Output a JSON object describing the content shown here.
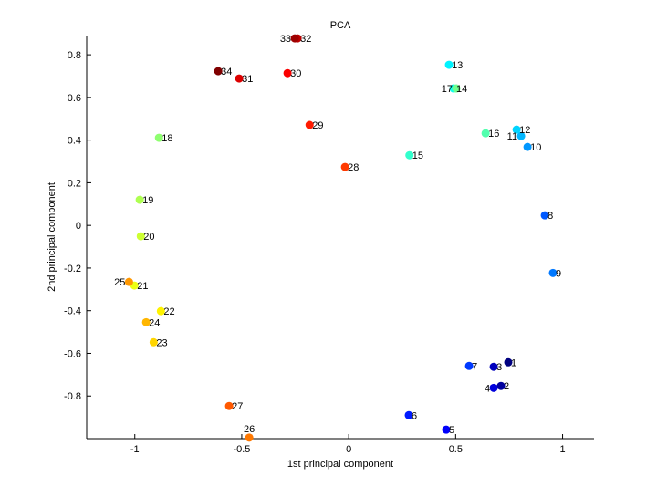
{
  "chart_data": {
    "type": "scatter",
    "title": "PCA",
    "xlabel": "1st principal component",
    "ylabel": "2nd principal component",
    "xlim": [
      -1.225,
      1.147
    ],
    "ylim": [
      -1.0,
      0.886
    ],
    "grid": false,
    "colormap": "jet",
    "xticks": [
      -1,
      -0.5,
      0,
      0.5,
      1
    ],
    "xtick_labels": [
      "-1",
      "-0.5",
      "0",
      "0.5",
      "1"
    ],
    "yticks": [
      -0.8,
      -0.6,
      -0.4,
      -0.2,
      0,
      0.2,
      0.4,
      0.6,
      0.8
    ],
    "ytick_labels": [
      "-0.8",
      "-0.6",
      "-0.4",
      "-0.2",
      "0",
      "0.2",
      "0.4",
      "0.6",
      "0.8"
    ],
    "points": [
      {
        "label": "1",
        "x": 0.746,
        "y": -0.642
      },
      {
        "label": "2",
        "x": 0.712,
        "y": -0.753
      },
      {
        "label": "3",
        "x": 0.678,
        "y": -0.663
      },
      {
        "label": "4",
        "x": 0.678,
        "y": -0.762
      },
      {
        "label": "5",
        "x": 0.456,
        "y": -0.958
      },
      {
        "label": "6",
        "x": 0.281,
        "y": -0.89
      },
      {
        "label": "7",
        "x": 0.563,
        "y": -0.659
      },
      {
        "label": "8",
        "x": 0.917,
        "y": 0.047
      },
      {
        "label": "9",
        "x": 0.955,
        "y": -0.223
      },
      {
        "label": "10",
        "x": 0.836,
        "y": 0.368
      },
      {
        "label": "11",
        "x": 0.806,
        "y": 0.419
      },
      {
        "label": "12",
        "x": 0.785,
        "y": 0.449
      },
      {
        "label": "13",
        "x": 0.469,
        "y": 0.753
      },
      {
        "label": "14",
        "x": 0.49,
        "y": 0.642
      },
      {
        "label": "15",
        "x": 0.284,
        "y": 0.329
      },
      {
        "label": "16",
        "x": 0.64,
        "y": 0.432
      },
      {
        "label": "17",
        "x": 0.503,
        "y": 0.642
      },
      {
        "label": "18",
        "x": -0.887,
        "y": 0.411
      },
      {
        "label": "19",
        "x": -0.977,
        "y": 0.12
      },
      {
        "label": "20",
        "x": -0.972,
        "y": -0.051
      },
      {
        "label": "21",
        "x": -1.002,
        "y": -0.282
      },
      {
        "label": "22",
        "x": -0.878,
        "y": -0.402
      },
      {
        "label": "23",
        "x": -0.912,
        "y": -0.548
      },
      {
        "label": "24",
        "x": -0.947,
        "y": -0.454
      },
      {
        "label": "25",
        "x": -1.027,
        "y": -0.265
      },
      {
        "label": "26",
        "x": -0.465,
        "y": -0.995
      },
      {
        "label": "27",
        "x": -0.559,
        "y": -0.847
      },
      {
        "label": "28",
        "x": -0.017,
        "y": 0.274
      },
      {
        "label": "29",
        "x": -0.183,
        "y": 0.471
      },
      {
        "label": "30",
        "x": -0.286,
        "y": 0.714
      },
      {
        "label": "31",
        "x": -0.512,
        "y": 0.689
      },
      {
        "label": "32",
        "x": -0.239,
        "y": 0.877
      },
      {
        "label": "33",
        "x": -0.252,
        "y": 0.877
      },
      {
        "label": "34",
        "x": -0.61,
        "y": 0.723
      }
    ]
  }
}
